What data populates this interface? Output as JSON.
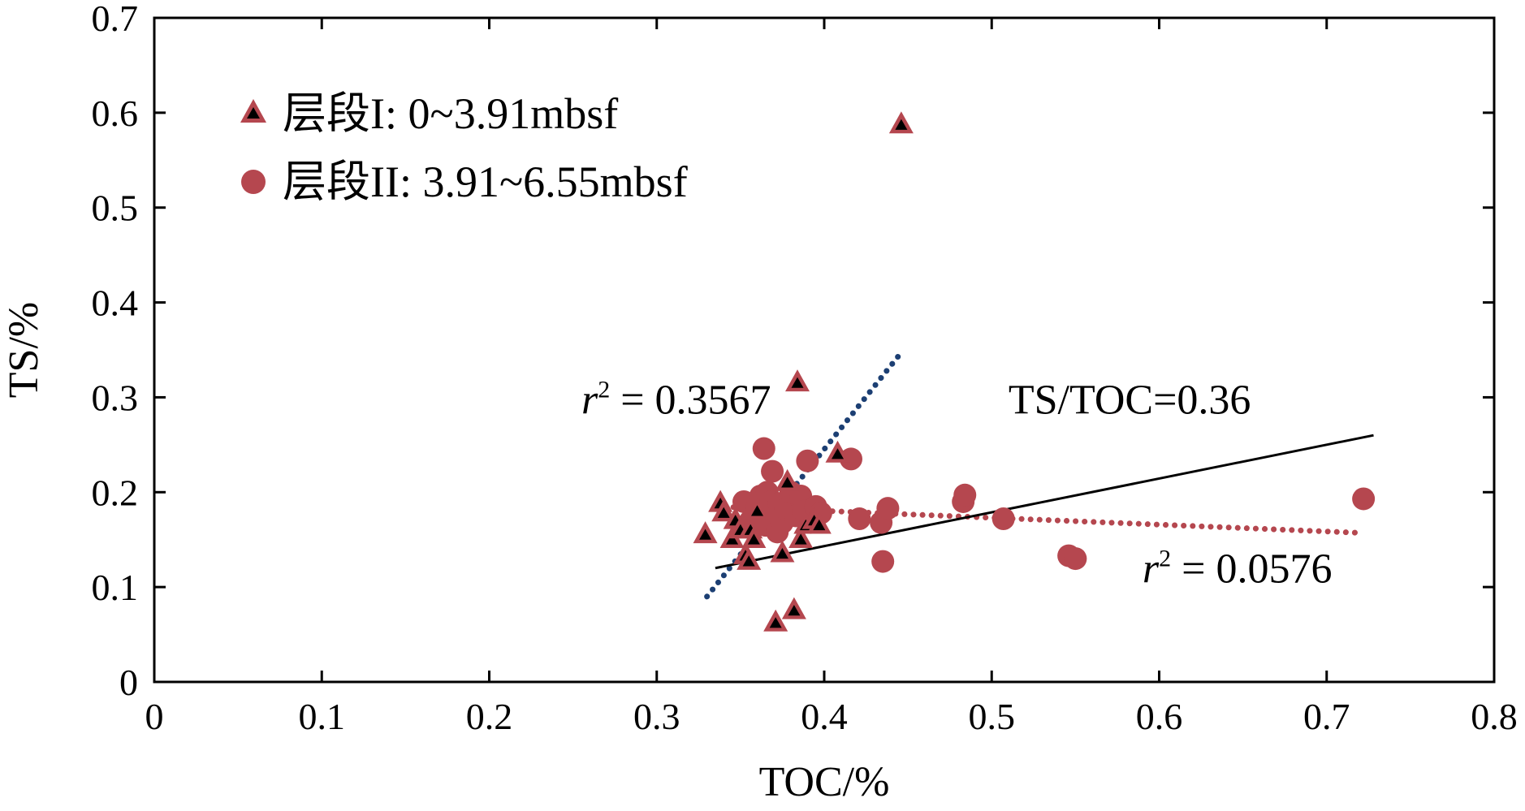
{
  "chart_data": {
    "type": "scatter",
    "xlabel": "TOC/%",
    "ylabel": "TS/%",
    "xlim": [
      0,
      0.8
    ],
    "ylim": [
      0,
      0.7
    ],
    "xticks": [
      "0",
      "0.1",
      "0.2",
      "0.3",
      "0.4",
      "0.5",
      "0.6",
      "0.7",
      "0.8"
    ],
    "yticks": [
      "0",
      "0.1",
      "0.2",
      "0.3",
      "0.4",
      "0.5",
      "0.6",
      "0.7"
    ],
    "grid": false,
    "legend_position": "top-left",
    "series": [
      {
        "name": "层段I: 0~3.91mbsf",
        "marker": "triangle",
        "color": "#b5474f",
        "inner_color": "#000000",
        "points": [
          [
            0.329,
            0.155
          ],
          [
            0.338,
            0.188
          ],
          [
            0.34,
            0.178
          ],
          [
            0.345,
            0.15
          ],
          [
            0.347,
            0.17
          ],
          [
            0.35,
            0.16
          ],
          [
            0.353,
            0.133
          ],
          [
            0.355,
            0.127
          ],
          [
            0.356,
            0.16
          ],
          [
            0.358,
            0.15
          ],
          [
            0.36,
            0.18
          ],
          [
            0.371,
            0.062
          ],
          [
            0.375,
            0.135
          ],
          [
            0.378,
            0.21
          ],
          [
            0.382,
            0.075
          ],
          [
            0.384,
            0.315
          ],
          [
            0.386,
            0.15
          ],
          [
            0.389,
            0.165
          ],
          [
            0.394,
            0.17
          ],
          [
            0.397,
            0.165
          ],
          [
            0.408,
            0.24
          ],
          [
            0.446,
            0.587
          ]
        ]
      },
      {
        "name": "层段II: 3.91~6.55mbsf",
        "marker": "circle",
        "color": "#b5474f",
        "points": [
          [
            0.352,
            0.19
          ],
          [
            0.356,
            0.17
          ],
          [
            0.36,
            0.185
          ],
          [
            0.362,
            0.196
          ],
          [
            0.364,
            0.246
          ],
          [
            0.365,
            0.165
          ],
          [
            0.366,
            0.2
          ],
          [
            0.368,
            0.19
          ],
          [
            0.369,
            0.222
          ],
          [
            0.37,
            0.175
          ],
          [
            0.372,
            0.158
          ],
          [
            0.373,
            0.188
          ],
          [
            0.375,
            0.168
          ],
          [
            0.377,
            0.182
          ],
          [
            0.38,
            0.2
          ],
          [
            0.383,
            0.175
          ],
          [
            0.386,
            0.196
          ],
          [
            0.388,
            0.18
          ],
          [
            0.39,
            0.233
          ],
          [
            0.392,
            0.168
          ],
          [
            0.395,
            0.185
          ],
          [
            0.398,
            0.178
          ],
          [
            0.416,
            0.235
          ],
          [
            0.421,
            0.172
          ],
          [
            0.434,
            0.168
          ],
          [
            0.435,
            0.127
          ],
          [
            0.438,
            0.183
          ],
          [
            0.483,
            0.19
          ],
          [
            0.484,
            0.197
          ],
          [
            0.507,
            0.172
          ],
          [
            0.546,
            0.133
          ],
          [
            0.55,
            0.13
          ],
          [
            0.722,
            0.193
          ]
        ]
      }
    ],
    "trendlines": [
      {
        "series": "层段I: 0~3.91mbsf",
        "style": "dotted",
        "color": "#1c3f73",
        "x": [
          0.33,
          0.445
        ],
        "y": [
          0.09,
          0.345
        ]
      },
      {
        "series": "层段II: 3.91~6.55mbsf",
        "style": "dotted",
        "color": "#b5474f",
        "x": [
          0.335,
          0.722
        ],
        "y": [
          0.185,
          0.157
        ]
      },
      {
        "series": "reference",
        "style": "solid",
        "color": "#000000",
        "x": [
          0.335,
          0.728
        ],
        "y": [
          0.12,
          0.26
        ]
      }
    ],
    "annotations": [
      {
        "id": "r2_interval1",
        "italic": "r",
        "sup": "2",
        "rest": " = 0.3567",
        "x": 0.255,
        "y": 0.283
      },
      {
        "id": "ts_toc_ratio",
        "text": "TS/TOC=0.36",
        "x": 0.51,
        "y": 0.283
      },
      {
        "id": "r2_interval2",
        "italic": "r",
        "sup": "2",
        "rest": " = 0.0576",
        "x": 0.59,
        "y": 0.105
      }
    ]
  }
}
